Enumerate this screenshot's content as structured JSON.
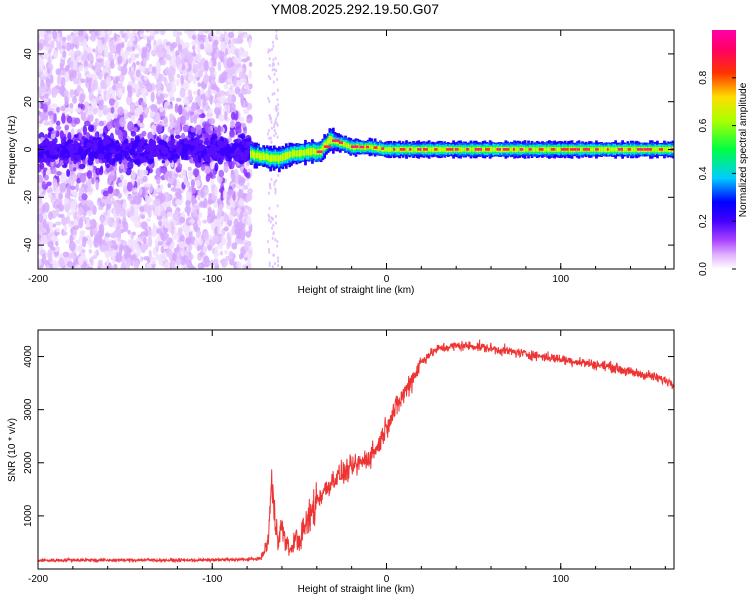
{
  "title": "YM08.2025.292.19.50.G07",
  "chart_data": [
    {
      "type": "heatmap",
      "name": "spectrogram",
      "xlabel": "Height of straight line (km)",
      "ylabel": "Frequency (Hz)",
      "xlim": [
        -200,
        165
      ],
      "ylim": [
        -50,
        50
      ],
      "x_ticks": [
        -200,
        -100,
        0,
        100
      ],
      "y_ticks": [
        -40,
        -20,
        0,
        20,
        40
      ],
      "signal_onset_km": -78,
      "signal_track": [
        {
          "x": -78,
          "y": -2
        },
        {
          "x": -62,
          "y": -4
        },
        {
          "x": -55,
          "y": -2
        },
        {
          "x": -45,
          "y": -1
        },
        {
          "x": -38,
          "y": -1
        },
        {
          "x": -33,
          "y": 4
        },
        {
          "x": -28,
          "y": 3
        },
        {
          "x": -20,
          "y": 1
        },
        {
          "x": -10,
          "y": 1
        },
        {
          "x": 0,
          "y": 0
        },
        {
          "x": 165,
          "y": 0
        }
      ],
      "colorbar": {
        "label": "Normalized spectral amplitude",
        "range": [
          0,
          1
        ],
        "ticks": [
          "0.0",
          "0.2",
          "0.4",
          "0.6",
          "0.8"
        ],
        "colors": [
          "#ffffff",
          "#cc66ff",
          "#6600ff",
          "#0000ff",
          "#00ffff",
          "#00ff00",
          "#ffff00",
          "#ff0000",
          "#ff00ff"
        ]
      }
    },
    {
      "type": "line",
      "name": "snr",
      "xlabel": "Height of straight line (km)",
      "ylabel": "SNR (10 * v/v)",
      "xlim": [
        -200,
        165
      ],
      "ylim": [
        0,
        4500
      ],
      "x_ticks": [
        -200,
        -100,
        0,
        100
      ],
      "y_ticks": [
        1000,
        2000,
        3000,
        4000
      ],
      "color": "#ee3333",
      "series": [
        {
          "name": "SNR",
          "x": [
            -200,
            -180,
            -160,
            -140,
            -120,
            -100,
            -90,
            -80,
            -72,
            -68,
            -66,
            -64,
            -62,
            -60,
            -58,
            -55,
            -52,
            -50,
            -48,
            -45,
            -40,
            -35,
            -30,
            -25,
            -20,
            -15,
            -10,
            -5,
            0,
            5,
            10,
            15,
            20,
            25,
            30,
            40,
            50,
            60,
            70,
            80,
            90,
            100,
            110,
            120,
            130,
            140,
            150,
            160,
            165
          ],
          "y": [
            160,
            170,
            165,
            170,
            165,
            170,
            175,
            180,
            200,
            500,
            1600,
            900,
            600,
            800,
            500,
            350,
            600,
            500,
            700,
            900,
            1300,
            1500,
            1700,
            1800,
            1900,
            2000,
            2100,
            2300,
            2700,
            3000,
            3300,
            3600,
            3900,
            4050,
            4150,
            4200,
            4200,
            4150,
            4100,
            4050,
            4000,
            3950,
            3900,
            3850,
            3800,
            3700,
            3650,
            3550,
            3500
          ]
        }
      ]
    }
  ]
}
